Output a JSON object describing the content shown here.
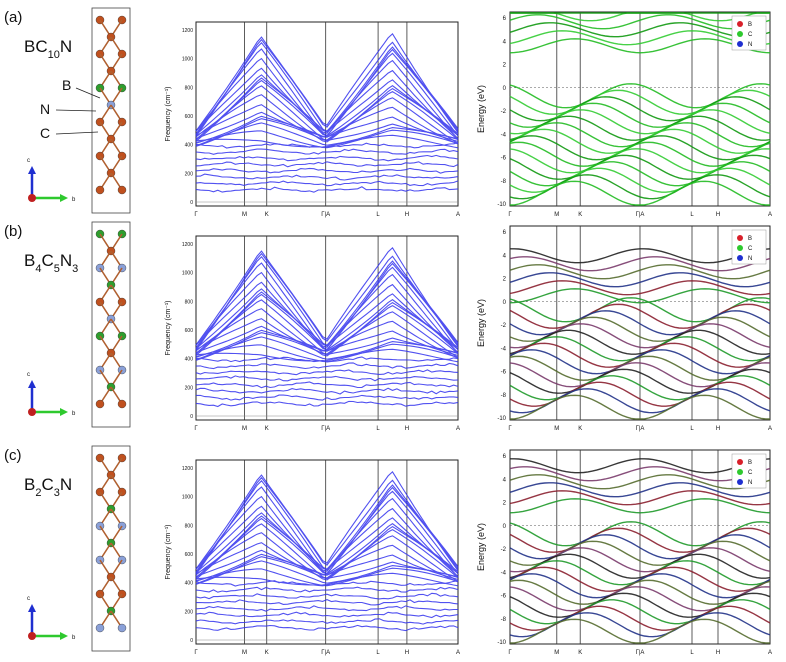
{
  "panels": [
    {
      "label": "(a)",
      "formula": {
        "base": "BC",
        "sub1": "10",
        "mid": "N",
        "sub2": "",
        "tail": ""
      },
      "structure_labels": [
        "B",
        "N",
        "C"
      ],
      "axes": {
        "up": "c",
        "right": "b"
      },
      "phonon": {
        "ylabel": "Frequency (cm⁻¹)",
        "yticks": [
          "0",
          "200",
          "400",
          "600",
          "800",
          "1000",
          "1200"
        ]
      },
      "band": {
        "ylabel": "Energy (eV)",
        "yticks": [
          "6",
          "4",
          "2",
          "0",
          "-2",
          "-4",
          "-6",
          "-8",
          "-10"
        ],
        "legend": [
          "B",
          "C",
          "N"
        ],
        "legend_colors": [
          "#d8202a",
          "#2ec92e",
          "#1f2fd0"
        ]
      }
    },
    {
      "label": "(b)",
      "formula": {
        "base": "B",
        "sub1": "4",
        "mid": "C",
        "sub2": "5",
        "tail": "N3"
      },
      "axes": {
        "up": "c",
        "right": "b"
      },
      "phonon": {
        "ylabel": "Frequency (cm⁻¹)",
        "yticks": [
          "0",
          "200",
          "400",
          "600",
          "800",
          "1000",
          "1200"
        ]
      },
      "band": {
        "ylabel": "Energy (eV)",
        "yticks": [
          "6",
          "4",
          "2",
          "0",
          "-2",
          "-4",
          "-6",
          "-8",
          "-10"
        ],
        "legend": [
          "B",
          "C",
          "N"
        ],
        "legend_colors": [
          "#d8202a",
          "#2ec92e",
          "#1f2fd0"
        ]
      }
    },
    {
      "label": "(c)",
      "formula": {
        "base": "B",
        "sub1": "2",
        "mid": "C",
        "sub2": "3",
        "tail": "N"
      },
      "axes": {
        "up": "c",
        "right": "b"
      },
      "phonon": {
        "ylabel": "Frequency (cm⁻¹)",
        "yticks": [
          "0",
          "200",
          "400",
          "600",
          "800",
          "1000",
          "1200"
        ]
      },
      "band": {
        "ylabel": "Energy (eV)",
        "yticks": [
          "6",
          "4",
          "2",
          "0",
          "-2",
          "-4",
          "-6",
          "-8",
          "-10"
        ],
        "legend": [
          "B",
          "C",
          "N"
        ],
        "legend_colors": [
          "#d8202a",
          "#2ec92e",
          "#1f2fd0"
        ]
      }
    }
  ],
  "kpath": [
    "Γ",
    "M",
    "K",
    "Γ|A",
    "L",
    "H",
    "A"
  ],
  "colors": {
    "phonon": "#3333ee",
    "carbon": "#c0501e",
    "boron": "#2e9e2e",
    "nitrogen": "#8aa0d8"
  }
}
